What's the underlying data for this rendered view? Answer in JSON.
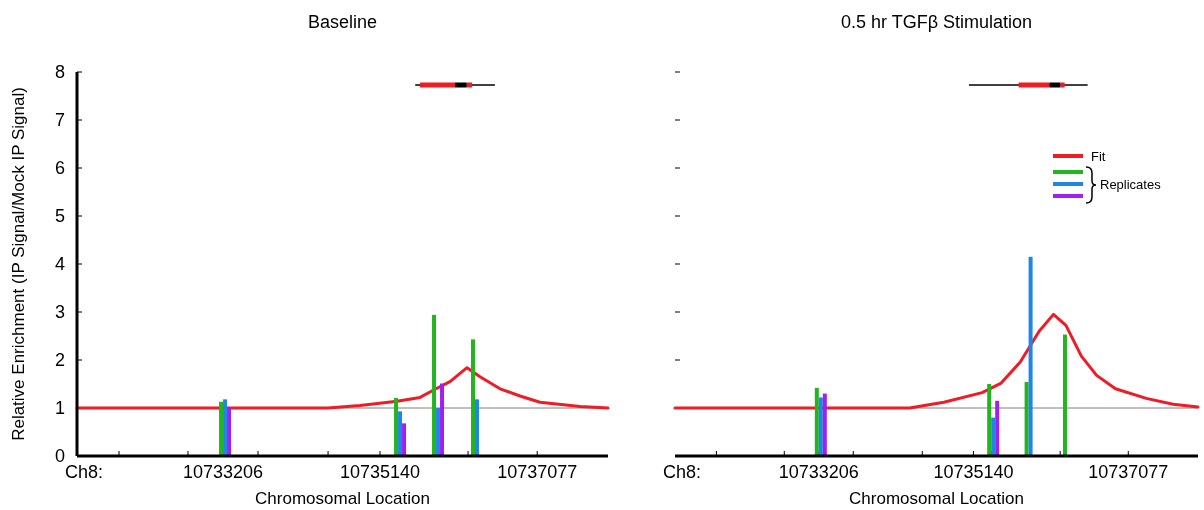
{
  "chart_data": [
    {
      "type": "bar",
      "title": "Baseline",
      "xlabel": "Chromosomal Location",
      "ylabel": "Relative Enrichment (IP Signal/Mock IP Signal)",
      "annotations": [
        "Ch8:"
      ],
      "x": [
        10733231,
        10735387,
        10735855,
        10736335
      ],
      "series": [
        {
          "type": "line",
          "color": "#ee1c25",
          "x": [
            10731407,
            10734500,
            10734894,
            10735350,
            10735633,
            10735830,
            10736003,
            10736212,
            10736372,
            10736619,
            10736865,
            10737111,
            10737604,
            10737949
          ],
          "values": [
            1,
            1,
            1.05,
            1.14,
            1.22,
            1.4,
            1.55,
            1.84,
            1.65,
            1.4,
            1.25,
            1.12,
            1.03,
            1
          ]
        },
        {
          "color": "#22b51f",
          "values": [
            1.13,
            1.21,
            2.94,
            2.43
          ]
        },
        {
          "color": "#1f86e6",
          "values": [
            1.18,
            0.93,
            1.0,
            1.18
          ]
        },
        {
          "color": "#a020f0",
          "values": [
            1.0,
            0.68,
            1.51,
            null
          ]
        }
      ],
      "xlim": [
        10731407,
        10737949
      ],
      "xticks": [
        {
          "value": 10731925,
          "label": null
        },
        {
          "value": 10732774,
          "label": null
        },
        10733206,
        {
          "value": 10733637,
          "label": null
        },
        {
          "value": 10734500,
          "label": null
        },
        10735140,
        {
          "value": 10735362,
          "label": null
        },
        {
          "value": 10736225,
          "label": null
        },
        10737077
      ],
      "ylim": [
        0,
        8
      ],
      "yticks": [
        0,
        1,
        2,
        3,
        4,
        5,
        6,
        7,
        8
      ],
      "ref_lines": [
        {
          "axis": "y",
          "value": 1,
          "color": "#808080"
        }
      ],
      "legend": false
    },
    {
      "type": "bar",
      "title": "0.5 hr TGFβ Stimulation",
      "xlabel": "Chromosomal Location",
      "annotations": [
        "Ch8:"
      ],
      "x": [
        10733231,
        10735387,
        10735855,
        10736335
      ],
      "series": [
        {
          "type": "line",
          "name": "Fit",
          "color": "#ee1c25",
          "x": [
            10731407,
            10734342,
            10734770,
            10735249,
            10735487,
            10735726,
            10735962,
            10736141,
            10736297,
            10736490,
            10736681,
            10736917,
            10737302,
            10737637,
            10737949
          ],
          "values": [
            1,
            1,
            1.12,
            1.32,
            1.52,
            1.96,
            2.6,
            2.95,
            2.72,
            2.08,
            1.68,
            1.4,
            1.2,
            1.08,
            1.02
          ]
        },
        {
          "color": "#22b51f",
          "values": [
            1.42,
            1.5,
            1.54,
            2.53
          ]
        },
        {
          "color": "#1f86e6",
          "values": [
            1.22,
            0.8,
            4.15,
            null
          ]
        },
        {
          "color": "#a020f0",
          "values": [
            1.3,
            1.15,
            null,
            null
          ]
        }
      ],
      "legend_title": "Replicates",
      "xlim": [
        10731407,
        10737949
      ],
      "xticks": [
        {
          "value": 10731925,
          "label": null
        },
        {
          "value": 10732774,
          "label": null
        },
        10733206,
        {
          "value": 10733637,
          "label": null
        },
        {
          "value": 10734500,
          "label": null
        },
        10735140,
        {
          "value": 10735362,
          "label": null
        },
        {
          "value": 10736225,
          "label": null
        },
        10737077
      ],
      "ylim": [
        0,
        8
      ],
      "yticks": [
        0,
        1,
        2,
        3,
        4,
        5,
        6,
        7,
        8
      ],
      "tick_labels": "x",
      "ref_lines": [
        {
          "axis": "y",
          "value": 1,
          "color": "#808080"
        }
      ],
      "legend": "top right"
    }
  ]
}
